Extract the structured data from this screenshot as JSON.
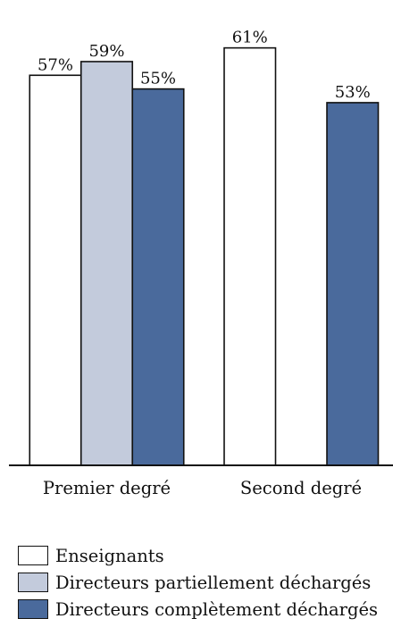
{
  "chart_data": {
    "type": "bar",
    "categories": [
      "Premier degré",
      "Second degré"
    ],
    "series": [
      {
        "name": "Enseignants",
        "values": [
          57,
          61
        ],
        "labels": [
          "57%",
          "61%"
        ],
        "color": "#ffffff"
      },
      {
        "name": "Directeurs partiellement déchargés",
        "values": [
          59,
          null
        ],
        "labels": [
          "59%",
          null
        ],
        "color": "#c3cbdc"
      },
      {
        "name": "Directeurs complètement déchargés",
        "values": [
          55,
          53
        ],
        "labels": [
          "55%",
          "53%"
        ],
        "color": "#4a6a9c"
      }
    ],
    "ylim": [
      0,
      68
    ],
    "grid": false,
    "legend_position": "bottom-left"
  }
}
